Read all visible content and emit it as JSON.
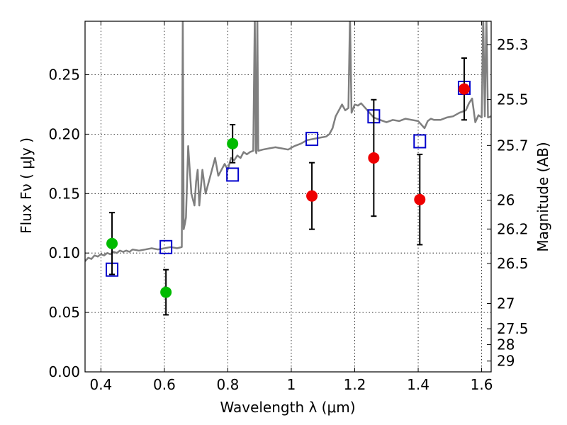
{
  "chart_data": {
    "type": "scatter",
    "xlabel": "Wavelength  λ (μm)",
    "ylabel": "Flux  Fν  ( μJy )",
    "y2label": "Magnitude (AB)",
    "xlim": [
      0.35,
      1.63
    ],
    "ylim": [
      0.0,
      0.295
    ],
    "grid": true,
    "x_ticks": [
      0.4,
      0.6,
      0.8,
      1.0,
      1.2,
      1.4,
      1.6
    ],
    "x_tick_labels": [
      "0.4",
      "0.6",
      "0.8",
      "1",
      "1.2",
      "1.4",
      "1.6"
    ],
    "y_ticks": [
      0.0,
      0.05,
      0.1,
      0.15,
      0.2,
      0.25
    ],
    "y_tick_labels": [
      "0.00",
      "0.05",
      "0.10",
      "0.15",
      "0.20",
      "0.25"
    ],
    "mag_ticks": [
      {
        "label": "25.3",
        "flux": 0.2754
      },
      {
        "label": "25.5",
        "flux": 0.2291
      },
      {
        "label": "25.7",
        "flux": 0.1905
      },
      {
        "label": "26",
        "flux": 0.1445
      },
      {
        "label": "26.2",
        "flux": 0.1202
      },
      {
        "label": "26.5",
        "flux": 0.0912
      },
      {
        "label": "27",
        "flux": 0.0575
      },
      {
        "label": "27.5",
        "flux": 0.0363
      },
      {
        "label": "28",
        "flux": 0.0229
      },
      {
        "label": "29",
        "flux": 0.0091
      }
    ],
    "series": [
      {
        "color": "#7f7f7f",
        "kind": "line",
        "x": [
          0.35,
          0.36,
          0.37,
          0.38,
          0.39,
          0.4,
          0.41,
          0.42,
          0.43,
          0.44,
          0.45,
          0.46,
          0.47,
          0.48,
          0.49,
          0.5,
          0.52,
          0.54,
          0.56,
          0.58,
          0.6,
          0.62,
          0.64,
          0.655,
          0.658,
          0.661,
          0.665,
          0.668,
          0.675,
          0.685,
          0.695,
          0.7,
          0.705,
          0.71,
          0.72,
          0.73,
          0.74,
          0.75,
          0.76,
          0.77,
          0.78,
          0.79,
          0.8,
          0.81,
          0.82,
          0.83,
          0.84,
          0.85,
          0.86,
          0.87,
          0.88,
          0.885,
          0.888,
          0.89,
          0.893,
          0.896,
          0.91,
          0.93,
          0.95,
          0.97,
          0.99,
          1.01,
          1.03,
          1.05,
          1.07,
          1.09,
          1.11,
          1.12,
          1.13,
          1.14,
          1.15,
          1.16,
          1.17,
          1.18,
          1.185,
          1.19,
          1.2,
          1.21,
          1.22,
          1.24,
          1.26,
          1.28,
          1.3,
          1.32,
          1.34,
          1.36,
          1.38,
          1.4,
          1.42,
          1.43,
          1.44,
          1.45,
          1.47,
          1.49,
          1.51,
          1.53,
          1.55,
          1.56,
          1.57,
          1.58,
          1.59,
          1.6,
          1.605,
          1.61,
          1.615,
          1.62,
          1.63
        ],
        "y": [
          0.093,
          0.096,
          0.095,
          0.098,
          0.097,
          0.099,
          0.098,
          0.1,
          0.099,
          0.101,
          0.1,
          0.102,
          0.101,
          0.102,
          0.101,
          0.103,
          0.102,
          0.103,
          0.104,
          0.103,
          0.104,
          0.105,
          0.104,
          0.105,
          0.3,
          0.12,
          0.125,
          0.13,
          0.19,
          0.15,
          0.14,
          0.16,
          0.17,
          0.14,
          0.17,
          0.15,
          0.16,
          0.17,
          0.18,
          0.165,
          0.17,
          0.175,
          0.17,
          0.18,
          0.178,
          0.182,
          0.18,
          0.185,
          0.183,
          0.185,
          0.186,
          0.3,
          0.186,
          0.184,
          0.3,
          0.186,
          0.187,
          0.188,
          0.189,
          0.188,
          0.187,
          0.19,
          0.192,
          0.195,
          0.196,
          0.197,
          0.198,
          0.2,
          0.205,
          0.215,
          0.22,
          0.225,
          0.22,
          0.222,
          0.3,
          0.218,
          0.225,
          0.224,
          0.226,
          0.22,
          0.214,
          0.212,
          0.21,
          0.212,
          0.211,
          0.213,
          0.212,
          0.211,
          0.205,
          0.211,
          0.213,
          0.212,
          0.212,
          0.214,
          0.215,
          0.218,
          0.22,
          0.226,
          0.23,
          0.21,
          0.216,
          0.214,
          0.3,
          0.215,
          0.3,
          0.214,
          0.215
        ]
      },
      {
        "color": "#0000cc",
        "kind": "open-square",
        "x": [
          0.435,
          0.605,
          0.815,
          1.065,
          1.26,
          1.405,
          1.545
        ],
        "y": [
          0.086,
          0.105,
          0.166,
          0.196,
          0.215,
          0.194,
          0.239
        ]
      },
      {
        "color": "#00bb00",
        "kind": "filled-circle",
        "x": [
          0.435,
          0.605,
          0.815
        ],
        "y": [
          0.108,
          0.067,
          0.192
        ],
        "err": [
          0.026,
          0.019,
          0.016
        ]
      },
      {
        "color": "#ee0000",
        "kind": "filled-circle",
        "x": [
          1.065,
          1.26,
          1.405,
          1.545
        ],
        "y": [
          0.148,
          0.18,
          0.145,
          0.238
        ],
        "err": [
          0.028,
          0.049,
          0.038,
          0.026
        ]
      }
    ]
  }
}
